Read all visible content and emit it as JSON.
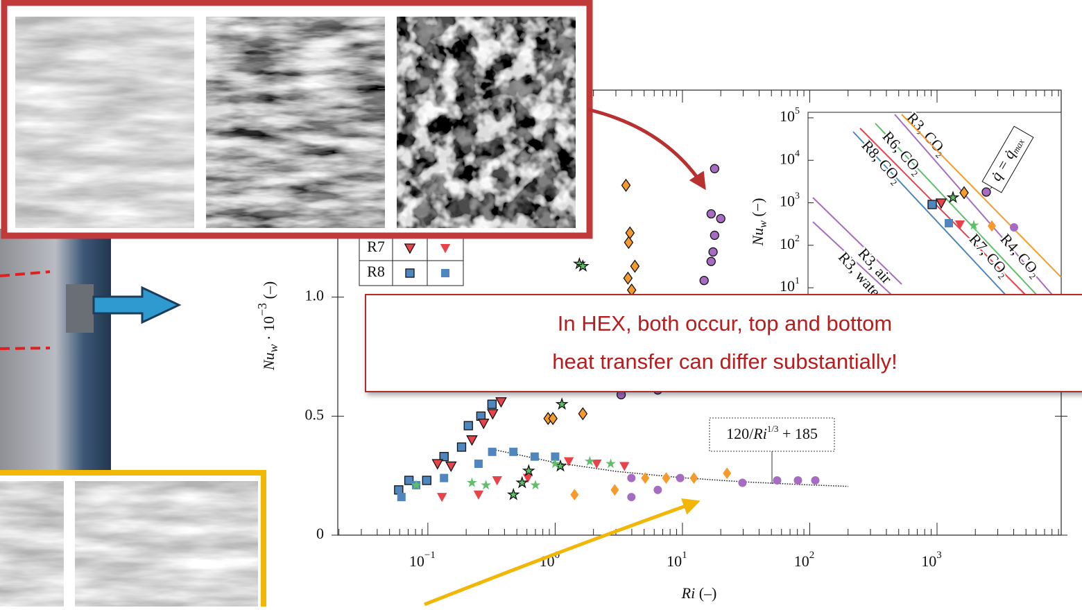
{
  "chart_data": {
    "type": "scatter",
    "xlog": true,
    "xlim": [
      0.0196,
      9450
    ],
    "ylim": [
      0,
      1.87
    ],
    "xticks": [
      {
        "value": 0.1,
        "label": "10",
        "exp": "−1"
      },
      {
        "value": 1,
        "label": "10",
        "exp": "0"
      },
      {
        "value": 10,
        "label": "10",
        "exp": "1"
      },
      {
        "value": 100,
        "label": "10",
        "exp": "2"
      },
      {
        "value": 1000,
        "label": "10",
        "exp": "3"
      }
    ],
    "yticks": [
      0,
      0.5,
      {
        "value": 1,
        "label": "1.0"
      }
    ],
    "xlabel": {
      "var": "Ri",
      "unit": " (–)"
    },
    "ylabel": {
      "var": "Nu",
      "sub": "w",
      "mid": " · 10",
      "exp": "−3",
      "unit": " (–)"
    },
    "series": [
      {
        "name": "R8",
        "color": "#4f86bd",
        "marker": "square",
        "outlined": true,
        "x": [
          0.059,
          0.071,
          0.098,
          0.134,
          0.184,
          0.208,
          0.261,
          0.319
        ],
        "values": [
          0.19,
          0.23,
          0.23,
          0.33,
          0.37,
          0.46,
          0.5,
          0.55
        ]
      },
      {
        "name": "R8",
        "color": "#4f86bd",
        "marker": "square",
        "outlined": false,
        "x": [
          0.062,
          0.081,
          0.134,
          0.25,
          0.32,
          0.47,
          0.69,
          1.0
        ],
        "values": [
          0.16,
          0.21,
          0.24,
          0.3,
          0.35,
          0.35,
          0.33,
          0.33
        ]
      },
      {
        "name": "R7",
        "color": "#e8434b",
        "marker": "triangle",
        "outlined": true,
        "x": [
          0.119,
          0.152,
          0.222,
          0.274,
          0.323,
          0.376
        ],
        "values": [
          0.3,
          0.29,
          0.4,
          0.47,
          0.51,
          0.56
        ]
      },
      {
        "name": "R7",
        "color": "#e8434b",
        "marker": "triangle",
        "outlined": false,
        "x": [
          0.129,
          0.25,
          0.35,
          0.61,
          1.28,
          2.12,
          3.5
        ],
        "values": [
          0.16,
          0.17,
          0.23,
          0.24,
          0.31,
          0.3,
          0.29
        ]
      },
      {
        "color": "#5fbf68",
        "marker": "star",
        "outlined": true,
        "x": [
          0.47,
          0.55,
          0.62,
          1.1,
          1.13,
          1.55,
          1.65
        ],
        "values": [
          0.17,
          0.22,
          0.27,
          0.29,
          0.55,
          1.14,
          1.13
        ]
      },
      {
        "color": "#5fbf68",
        "marker": "star",
        "outlined": false,
        "x": [
          0.081,
          0.222,
          0.286,
          0.7,
          1.0,
          1.87,
          2.73
        ],
        "values": [
          0.21,
          0.22,
          0.21,
          0.21,
          0.3,
          0.31,
          0.3
        ]
      },
      {
        "color": "#f59a2c",
        "marker": "diamond",
        "outlined": true,
        "x": [
          0.88,
          0.96,
          1.65,
          3.6,
          3.87,
          3.78,
          4.23,
          3.73,
          3.99
        ],
        "values": [
          0.49,
          0.49,
          0.51,
          1.47,
          1.27,
          1.23,
          1.13,
          1.08,
          1.03
        ]
      },
      {
        "color": "#f59a2c",
        "marker": "diamond",
        "outlined": false,
        "x": [
          1.42,
          2.94,
          5.1,
          7.45,
          12.3,
          22.4
        ],
        "values": [
          0.17,
          0.19,
          0.24,
          0.24,
          0.24,
          0.26
        ]
      },
      {
        "color": "#a56cc1",
        "marker": "circle",
        "outlined": true,
        "x": [
          17.9,
          16.8,
          20.0,
          17.9,
          17.4,
          16.8,
          14.8,
          3.3,
          6.4
        ],
        "values": [
          1.54,
          1.35,
          1.33,
          1.26,
          1.19,
          1.15,
          1.07,
          0.59,
          0.61
        ]
      },
      {
        "color": "#a56cc1",
        "marker": "circle",
        "outlined": false,
        "x": [
          3.97,
          3.97,
          6.4,
          9.6,
          29.6,
          55.4,
          80.8,
          110.6
        ],
        "values": [
          0.24,
          0.16,
          0.19,
          0.24,
          0.22,
          0.23,
          0.23,
          0.23
        ]
      }
    ],
    "fit": {
      "x": [
        0.3,
        1,
        3,
        10,
        30,
        100,
        200
      ],
      "values": [
        0.364,
        0.305,
        0.268,
        0.241,
        0.224,
        0.211,
        0.205
      ],
      "label": {
        "prefix": "120/",
        "var": "Ri",
        "exp": "1/3",
        "suffix": " + 185"
      }
    },
    "inset": {
      "ylabel": {
        "var": "Nu",
        "sub": "w",
        "unit": " (−)"
      },
      "ylim_exp": [
        0.48,
        5.13
      ],
      "yticks": [
        {
          "value": 100000,
          "label": "10",
          "exp": "5"
        },
        {
          "value": 10000,
          "label": "10",
          "exp": "4"
        },
        {
          "value": 1000,
          "label": "10",
          "exp": "3"
        },
        {
          "value": 100,
          "label": "10",
          "exp": "2"
        },
        {
          "value": 10,
          "label": "10",
          "exp": "1"
        }
      ],
      "lines": [
        "R3, CO₂",
        "R6, CO₂",
        "R8, CO₂",
        "R3, air",
        "R3, water",
        "R4, CO₂",
        "R7, CO₂"
      ],
      "annotation": {
        "main": "q̇ = q̇",
        "sub": "max"
      }
    }
  },
  "callout": {
    "lines": [
      "In HEX, both occur, top and bottom",
      "heat transfer can differ substantially!"
    ]
  }
}
